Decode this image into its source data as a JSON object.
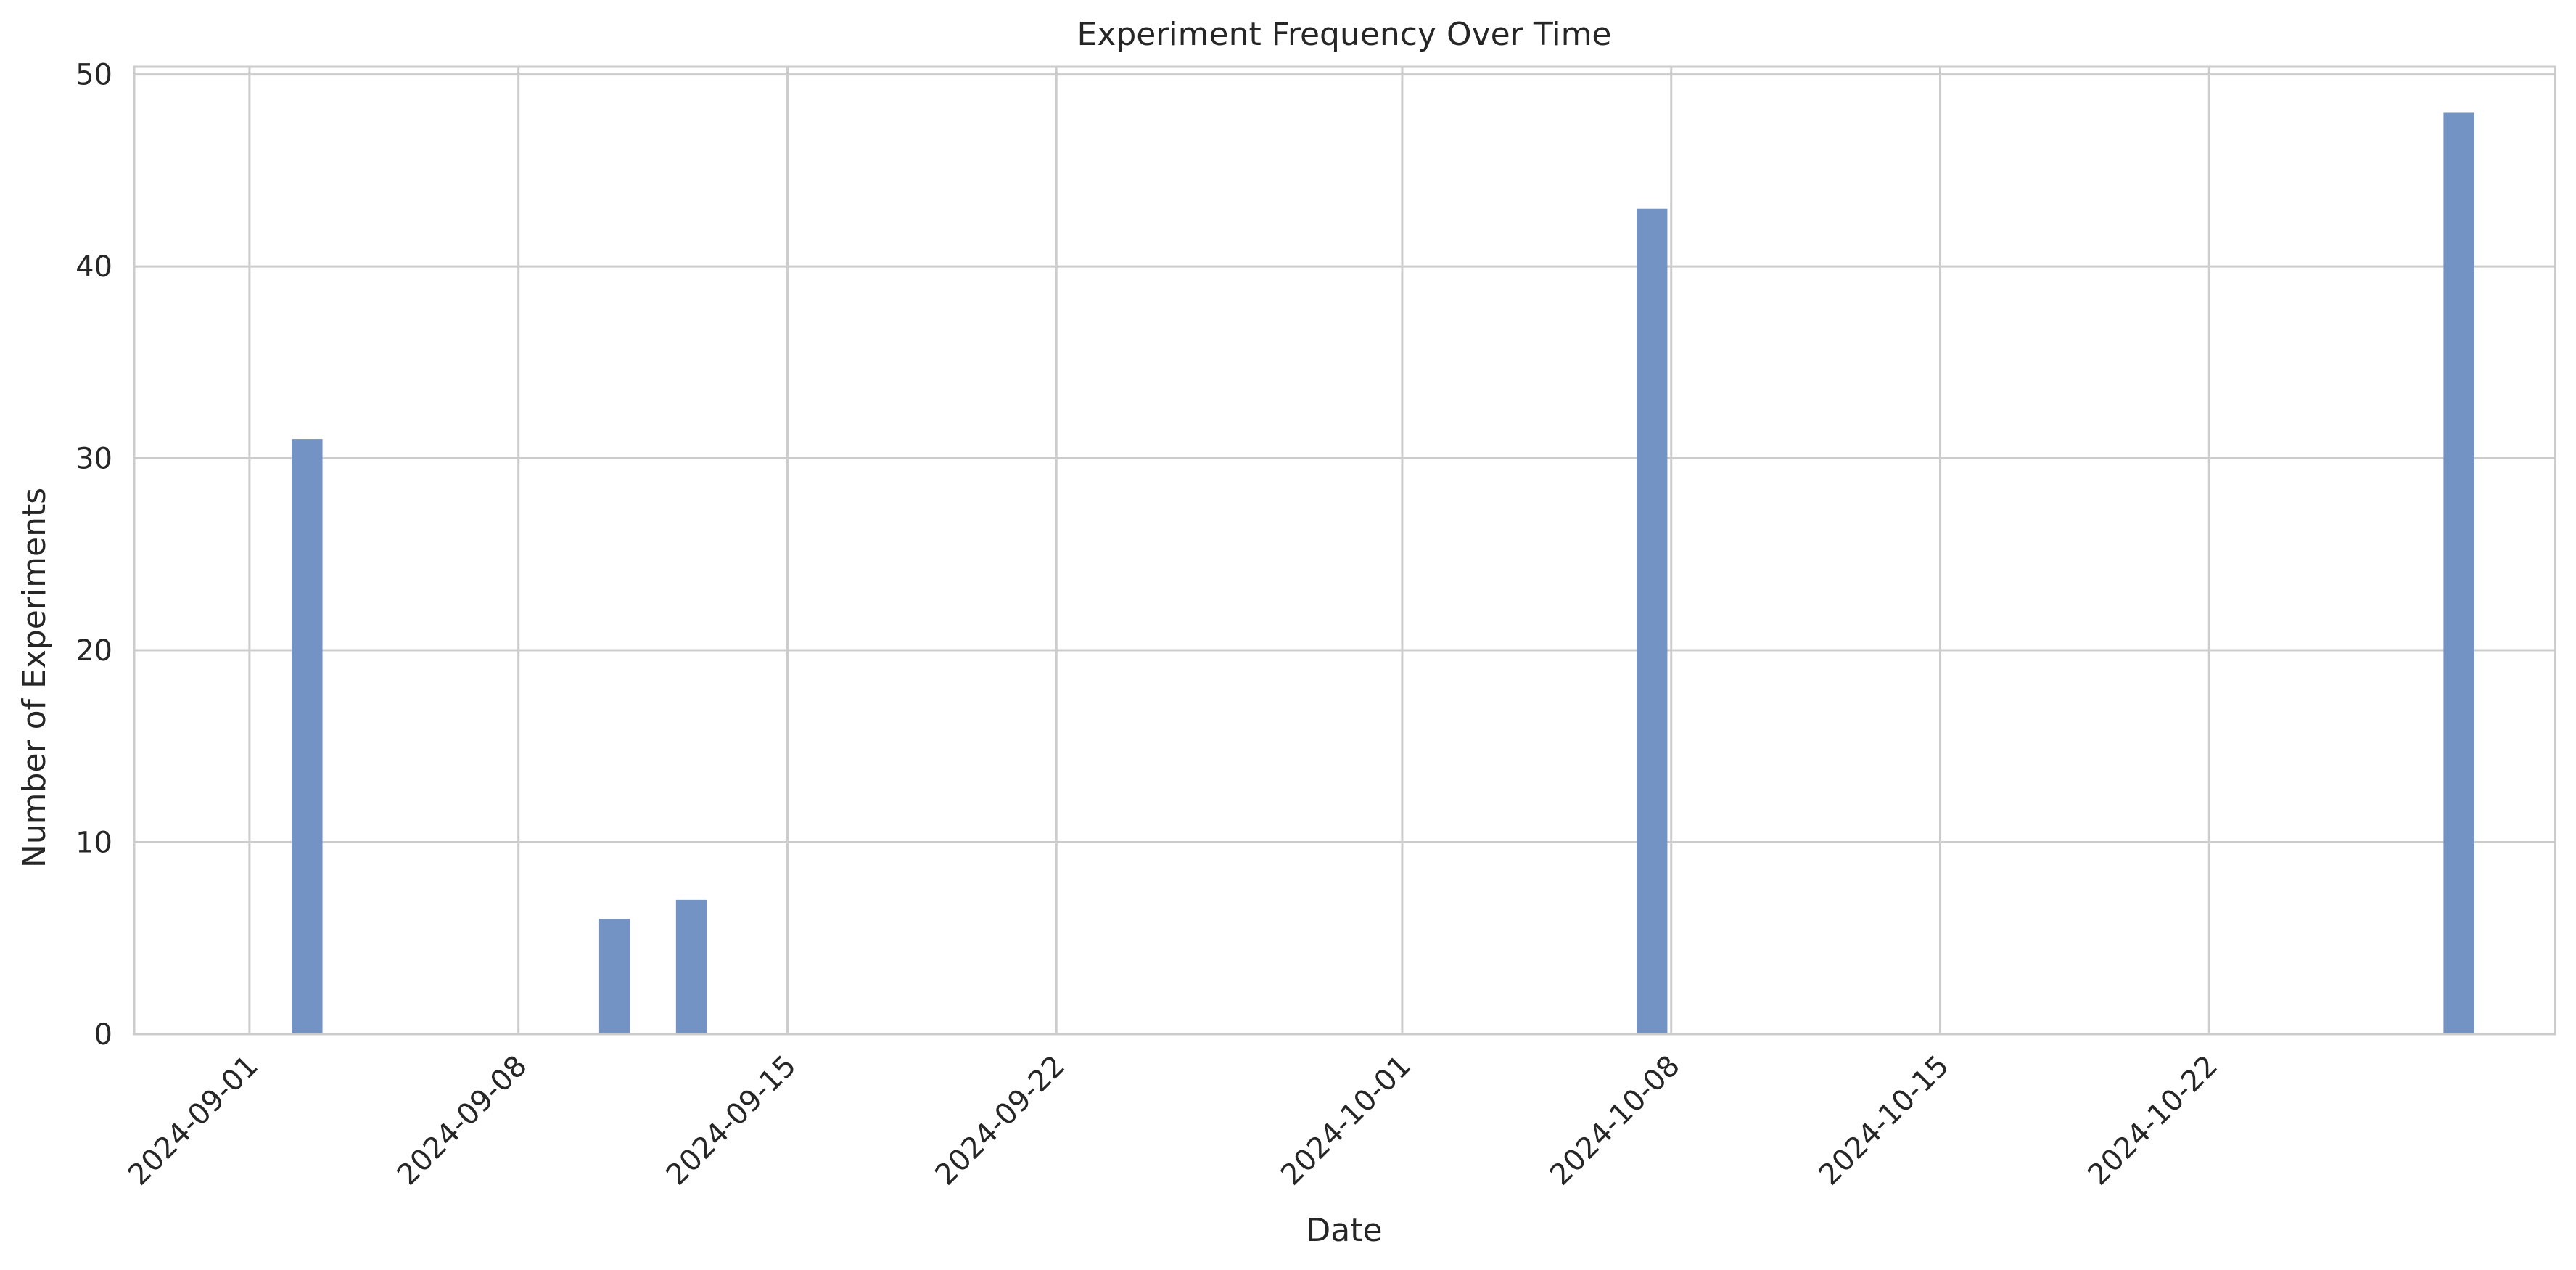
{
  "chart_data": {
    "type": "bar",
    "title": "Experiment Frequency Over Time",
    "xlabel": "Date",
    "ylabel": "Number of Experiments",
    "x_type": "date",
    "xlim": [
      "2024-08-29",
      "2024-10-31"
    ],
    "ylim": [
      0,
      50.4
    ],
    "x_ticks": [
      "2024-09-01",
      "2024-09-08",
      "2024-09-15",
      "2024-09-22",
      "2024-10-01",
      "2024-10-08",
      "2024-10-15",
      "2024-10-22"
    ],
    "y_ticks": [
      0,
      10,
      20,
      30,
      40,
      50
    ],
    "bar_width_days": 0.8,
    "bars": [
      {
        "date": "2024-09-02",
        "value": 31
      },
      {
        "date": "2024-09-10",
        "value": 6
      },
      {
        "date": "2024-09-12",
        "value": 7
      },
      {
        "date": "2024-10-07",
        "value": 43
      },
      {
        "date": "2024-10-28",
        "value": 48
      }
    ],
    "grid": true,
    "legend": "none",
    "colors": {
      "bar": "#7393c4",
      "grid": "#cccccc",
      "frame": "#cccccc",
      "text": "#262626",
      "background": "#ffffff"
    }
  }
}
